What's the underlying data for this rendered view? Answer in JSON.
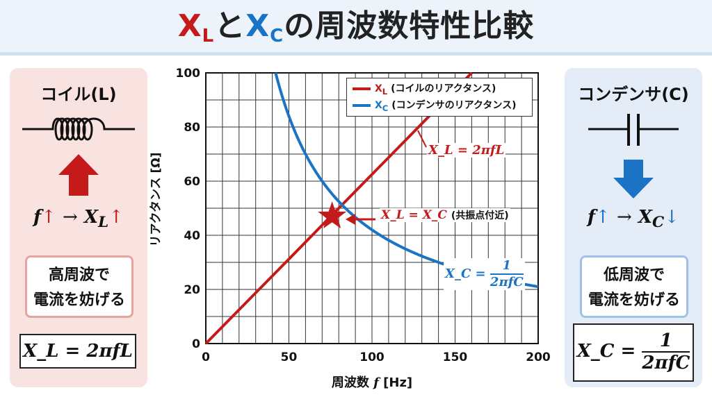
{
  "title": {
    "xl_main": "X",
    "xl_sub": "L",
    "connector": "と",
    "xc_main": "X",
    "xc_sub": "C",
    "rest": "の周波数特性比較"
  },
  "left_panel": {
    "title": "コイル(L)",
    "relation_f": "f",
    "relation_up1": "↑",
    "relation_arrow": "→",
    "relation_x": "X",
    "relation_sub": "L",
    "relation_up2": "↑",
    "note_line1": "高周波で",
    "note_line2": "電流を妨げる",
    "formula": "X_L = 2πfL"
  },
  "right_panel": {
    "title": "コンデンサ(C)",
    "relation_f": "f",
    "relation_up": "↑",
    "relation_arrow": "→",
    "relation_x": "X",
    "relation_sub": "C",
    "relation_down": "↓",
    "note_line1": "低周波で",
    "note_line2": "電流を妨げる",
    "formula_lhs": "X_C =",
    "formula_num": "1",
    "formula_den": "2πfC"
  },
  "colors": {
    "xl": "#c41a1a",
    "xc": "#1a73c4",
    "left_bg": "#f9e3e1",
    "right_bg": "#e4edf7",
    "title_bg": "#edf3fa"
  },
  "icons": {
    "inductor": "inductor-symbol-icon",
    "capacitor": "capacitor-symbol-icon",
    "left_arrow": "arrow-up-icon",
    "right_arrow": "arrow-down-icon",
    "resonance": "star-icon"
  },
  "chart_data": {
    "type": "line",
    "xlabel_text": "周波数",
    "xlabel_var": "f",
    "xlabel_unit": "[Hz]",
    "ylabel": "リアクタンス [Ω]",
    "xlim": [
      0,
      200
    ],
    "ylim": [
      0,
      100
    ],
    "xticks": [
      0,
      50,
      100,
      150,
      200
    ],
    "yticks": [
      0,
      20,
      40,
      60,
      80,
      100
    ],
    "grid": true,
    "legend_position": "top-right",
    "series": [
      {
        "name": "X_L (コイルのリアクタンス)",
        "legend_main": "X",
        "legend_sub": "L",
        "legend_text": "(コイルのリアクタンス)",
        "color": "#c41a1a",
        "x": [
          0,
          25,
          50,
          75,
          100,
          125,
          150,
          160
        ],
        "y": [
          0,
          15.6,
          31.2,
          46.9,
          62.5,
          78.1,
          93.8,
          100
        ]
      },
      {
        "name": "X_C (コンデンサのリアクタンス)",
        "legend_main": "X",
        "legend_sub": "C",
        "legend_text": "(コンデンサのリアクタンス)",
        "color": "#1a73c4",
        "x": [
          42,
          50,
          60,
          75,
          90,
          100,
          125,
          150,
          175,
          200
        ],
        "y": [
          100,
          84,
          70,
          56,
          46.7,
          42,
          33.6,
          28,
          24,
          21
        ]
      }
    ],
    "annotations": {
      "xl_formula": "X_L = 2πfL",
      "eq_formula": "X_L = X_C",
      "eq_note": "(共振点付近)",
      "xc_lhs": "X_C =",
      "xc_num": "1",
      "xc_den": "2πfC"
    },
    "resonance_point": {
      "x": 76,
      "y": 47
    }
  }
}
